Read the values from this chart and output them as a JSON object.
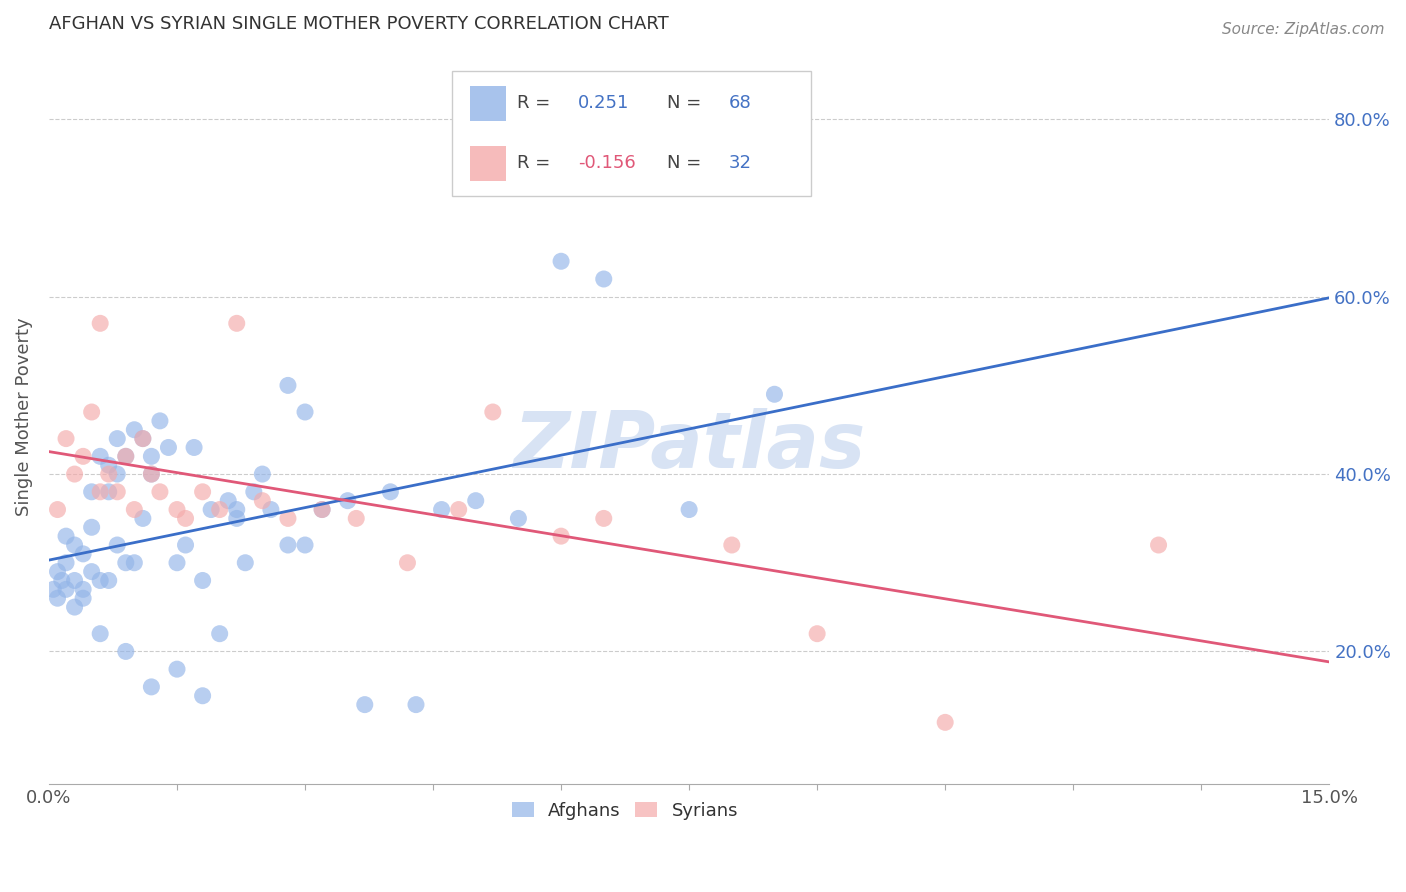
{
  "title": "AFGHAN VS SYRIAN SINGLE MOTHER POVERTY CORRELATION CHART",
  "source": "Source: ZipAtlas.com",
  "ylabel": "Single Mother Poverty",
  "xlim": [
    0.0,
    0.15
  ],
  "ylim": [
    0.05,
    0.88
  ],
  "blue_scatter_color": "#92B4E8",
  "pink_scatter_color": "#F4AAAA",
  "blue_line_color": "#3A6EC8",
  "pink_line_color": "#E05878",
  "blue_label_color": "#4472C4",
  "legend_text_color": "#333333",
  "legend_R_color": "#333333",
  "legend_val_blue_color": "#4472C4",
  "legend_val_pink_color": "#E05878",
  "legend_N_color": "#4472C4",
  "watermark_color": "#C8D8F0",
  "grid_color": "#CCCCCC",
  "afghans_x": [
    0.0005,
    0.001,
    0.001,
    0.0015,
    0.002,
    0.002,
    0.002,
    0.003,
    0.003,
    0.003,
    0.004,
    0.004,
    0.004,
    0.005,
    0.005,
    0.005,
    0.006,
    0.006,
    0.007,
    0.007,
    0.007,
    0.008,
    0.008,
    0.008,
    0.009,
    0.009,
    0.01,
    0.01,
    0.011,
    0.011,
    0.012,
    0.012,
    0.013,
    0.014,
    0.015,
    0.016,
    0.017,
    0.018,
    0.019,
    0.02,
    0.021,
    0.022,
    0.023,
    0.024,
    0.025,
    0.026,
    0.028,
    0.03,
    0.032,
    0.035,
    0.037,
    0.04,
    0.043,
    0.046,
    0.05,
    0.055,
    0.06,
    0.065,
    0.075,
    0.085,
    0.03,
    0.022,
    0.028,
    0.018,
    0.015,
    0.012,
    0.009,
    0.006
  ],
  "afghans_y": [
    0.27,
    0.26,
    0.29,
    0.28,
    0.3,
    0.27,
    0.33,
    0.28,
    0.32,
    0.25,
    0.27,
    0.31,
    0.26,
    0.38,
    0.34,
    0.29,
    0.42,
    0.28,
    0.38,
    0.41,
    0.28,
    0.44,
    0.4,
    0.32,
    0.42,
    0.3,
    0.45,
    0.3,
    0.44,
    0.35,
    0.4,
    0.42,
    0.46,
    0.43,
    0.3,
    0.32,
    0.43,
    0.28,
    0.36,
    0.22,
    0.37,
    0.35,
    0.3,
    0.38,
    0.4,
    0.36,
    0.5,
    0.32,
    0.36,
    0.37,
    0.14,
    0.38,
    0.14,
    0.36,
    0.37,
    0.35,
    0.64,
    0.62,
    0.36,
    0.49,
    0.47,
    0.36,
    0.32,
    0.15,
    0.18,
    0.16,
    0.2,
    0.22
  ],
  "syrians_x": [
    0.001,
    0.002,
    0.003,
    0.004,
    0.005,
    0.006,
    0.006,
    0.007,
    0.008,
    0.009,
    0.01,
    0.011,
    0.012,
    0.013,
    0.015,
    0.016,
    0.018,
    0.02,
    0.022,
    0.025,
    0.028,
    0.032,
    0.036,
    0.042,
    0.048,
    0.052,
    0.06,
    0.065,
    0.08,
    0.09,
    0.105,
    0.13
  ],
  "syrians_y": [
    0.36,
    0.44,
    0.4,
    0.42,
    0.47,
    0.38,
    0.57,
    0.4,
    0.38,
    0.42,
    0.36,
    0.44,
    0.4,
    0.38,
    0.36,
    0.35,
    0.38,
    0.36,
    0.57,
    0.37,
    0.35,
    0.36,
    0.35,
    0.3,
    0.36,
    0.47,
    0.33,
    0.35,
    0.32,
    0.22,
    0.12,
    0.32
  ]
}
